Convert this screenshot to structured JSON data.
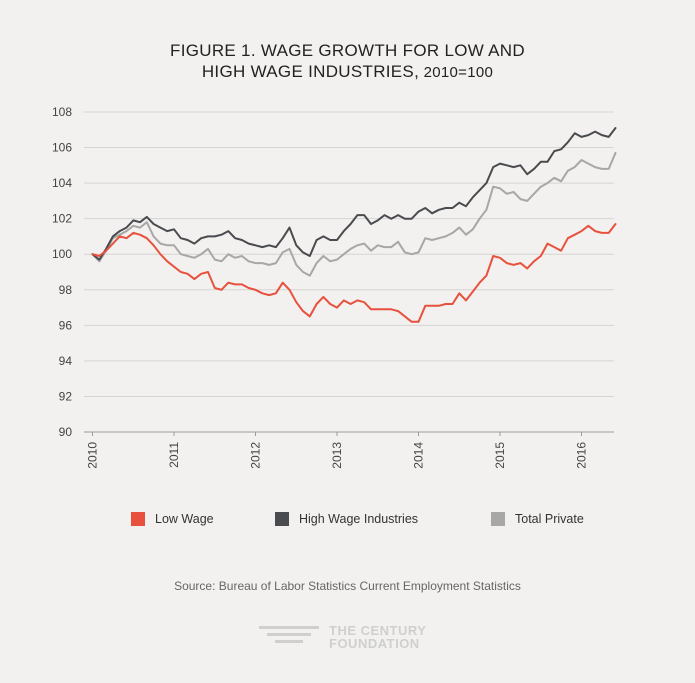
{
  "header": {
    "title_line1": "FIGURE 1. WAGE GROWTH FOR LOW AND",
    "title_line2_main": "HIGH WAGE INDUSTRIES,",
    "title_line2_sub": " 2010=100"
  },
  "chart_data": {
    "type": "line",
    "title": "FIGURE 1. WAGE GROWTH FOR LOW AND HIGH WAGE INDUSTRIES, 2010=100",
    "xlabel": "",
    "ylabel": "",
    "ylim": [
      90,
      108
    ],
    "xlim": [
      2010,
      2016.5
    ],
    "x_ticks": [
      "2010",
      "2011",
      "2012",
      "2013",
      "2014",
      "2015",
      "2016"
    ],
    "y_ticks": [
      90,
      92,
      94,
      96,
      98,
      100,
      102,
      104,
      106,
      108
    ],
    "grid": "horizontal",
    "x_start": "2010-01",
    "x_step": "month",
    "series": [
      {
        "name": "Low Wage",
        "color": "#e8513e",
        "values": [
          100.0,
          99.9,
          100.2,
          100.6,
          101.0,
          100.9,
          101.2,
          101.1,
          100.9,
          100.5,
          100.0,
          99.6,
          99.3,
          99.0,
          98.9,
          98.6,
          98.9,
          99.0,
          98.1,
          98.0,
          98.4,
          98.3,
          98.3,
          98.1,
          98.0,
          97.8,
          97.7,
          97.8,
          98.4,
          98.0,
          97.3,
          96.8,
          96.5,
          97.2,
          97.6,
          97.2,
          97.0,
          97.4,
          97.2,
          97.4,
          97.3,
          96.9,
          96.9,
          96.9,
          96.9,
          96.8,
          96.5,
          96.2,
          96.2,
          97.1,
          97.1,
          97.1,
          97.2,
          97.2,
          97.8,
          97.4,
          97.9,
          98.4,
          98.8,
          99.9,
          99.8,
          99.5,
          99.4,
          99.5,
          99.2,
          99.6,
          99.9,
          100.6,
          100.4,
          100.2,
          100.9,
          101.1,
          101.3,
          101.6,
          101.3,
          101.2,
          101.2,
          101.7
        ]
      },
      {
        "name": "High Wage Industries",
        "color": "#4a4b4f",
        "values": [
          100.0,
          99.7,
          100.3,
          101.0,
          101.3,
          101.5,
          101.9,
          101.8,
          102.1,
          101.7,
          101.5,
          101.3,
          101.4,
          100.9,
          100.8,
          100.6,
          100.9,
          101.0,
          101.0,
          101.1,
          101.3,
          100.9,
          100.8,
          100.6,
          100.5,
          100.4,
          100.5,
          100.4,
          100.9,
          101.5,
          100.5,
          100.1,
          99.9,
          100.8,
          101.0,
          100.8,
          100.8,
          101.3,
          101.7,
          102.2,
          102.2,
          101.7,
          101.9,
          102.2,
          102.0,
          102.2,
          102.0,
          102.0,
          102.4,
          102.6,
          102.3,
          102.5,
          102.6,
          102.6,
          102.9,
          102.7,
          103.2,
          103.6,
          104.0,
          104.9,
          105.1,
          105.0,
          104.9,
          105.0,
          104.5,
          104.8,
          105.2,
          105.2,
          105.8,
          105.9,
          106.3,
          106.8,
          106.6,
          106.7,
          106.9,
          106.7,
          106.6,
          107.1
        ]
      },
      {
        "name": "Total Private",
        "color": "#a7a7a7",
        "values": [
          100.0,
          99.6,
          100.2,
          100.9,
          101.1,
          101.3,
          101.6,
          101.5,
          101.8,
          101.0,
          100.6,
          100.5,
          100.5,
          100.0,
          99.9,
          99.8,
          100.0,
          100.3,
          99.7,
          99.6,
          100.0,
          99.8,
          99.9,
          99.6,
          99.5,
          99.5,
          99.4,
          99.5,
          100.1,
          100.3,
          99.4,
          99.0,
          98.8,
          99.5,
          99.9,
          99.6,
          99.7,
          100.0,
          100.3,
          100.5,
          100.6,
          100.2,
          100.5,
          100.4,
          100.4,
          100.7,
          100.1,
          100.0,
          100.1,
          100.9,
          100.8,
          100.9,
          101.0,
          101.2,
          101.5,
          101.1,
          101.4,
          102.0,
          102.5,
          103.8,
          103.7,
          103.4,
          103.5,
          103.1,
          103.0,
          103.4,
          103.8,
          104.0,
          104.3,
          104.1,
          104.7,
          104.9,
          105.3,
          105.1,
          104.9,
          104.8,
          104.8,
          105.7
        ]
      }
    ],
    "legend": {
      "placement": "bottom",
      "items": [
        "Low Wage",
        "High Wage Industries",
        "Total Private"
      ]
    }
  },
  "source_text": "Source: Bureau of Labor Statistics Current Employment Statistics",
  "logo": {
    "line1": "THE CENTURY",
    "line2": "FOUNDATION",
    "color": "#cfcfcd"
  }
}
